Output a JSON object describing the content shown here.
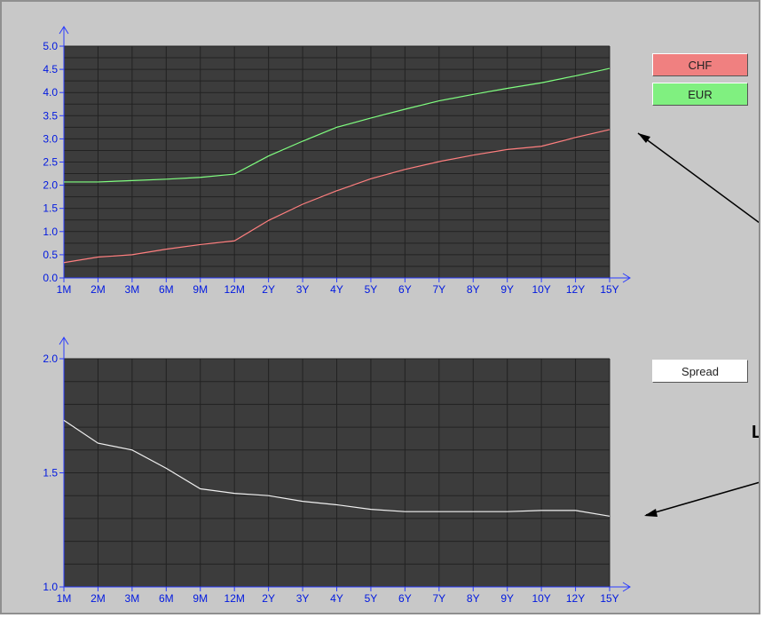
{
  "legend": {
    "chf": {
      "label": "CHF",
      "color": "#f08080"
    },
    "eur": {
      "label": "EUR",
      "color": "#80f080"
    },
    "spread": {
      "label": "Spread",
      "color": "#ffffff"
    }
  },
  "annotation_text": "L",
  "chart_data": [
    {
      "type": "line",
      "title": "",
      "xlabel": "",
      "ylabel": "",
      "categories": [
        "1M",
        "2M",
        "3M",
        "6M",
        "9M",
        "12M",
        "2Y",
        "3Y",
        "4Y",
        "5Y",
        "6Y",
        "7Y",
        "8Y",
        "9Y",
        "10Y",
        "12Y",
        "15Y"
      ],
      "ylim": [
        0,
        5
      ],
      "yticks": [
        "0.0",
        "0.5",
        "1.0",
        "1.5",
        "2.0",
        "2.5",
        "3.0",
        "3.5",
        "4.0",
        "4.5",
        "5.0"
      ],
      "grid": true,
      "legend_position": "right",
      "series": [
        {
          "name": "CHF",
          "color": "#ff7f7f",
          "values": [
            0.33,
            0.45,
            0.5,
            0.62,
            0.72,
            0.8,
            1.24,
            1.59,
            1.88,
            2.14,
            2.34,
            2.51,
            2.65,
            2.77,
            2.84,
            3.03,
            3.2
          ]
        },
        {
          "name": "EUR",
          "color": "#80ff80",
          "values": [
            2.07,
            2.07,
            2.1,
            2.13,
            2.17,
            2.24,
            2.63,
            2.95,
            3.25,
            3.45,
            3.64,
            3.82,
            3.96,
            4.09,
            4.21,
            4.36,
            4.52
          ]
        }
      ]
    },
    {
      "type": "line",
      "title": "",
      "xlabel": "",
      "ylabel": "",
      "categories": [
        "1M",
        "2M",
        "3M",
        "6M",
        "9M",
        "12M",
        "2Y",
        "3Y",
        "4Y",
        "5Y",
        "6Y",
        "7Y",
        "8Y",
        "9Y",
        "10Y",
        "12Y",
        "15Y"
      ],
      "ylim": [
        1.0,
        2.0
      ],
      "yticks": [
        "1.0",
        "1.5",
        "2.0"
      ],
      "grid": true,
      "legend_position": "right",
      "series": [
        {
          "name": "Spread",
          "color": "#f0f0f0",
          "values": [
            1.73,
            1.63,
            1.6,
            1.52,
            1.43,
            1.41,
            1.4,
            1.375,
            1.36,
            1.34,
            1.33,
            1.33,
            1.33,
            1.33,
            1.335,
            1.335,
            1.31
          ]
        }
      ]
    }
  ]
}
